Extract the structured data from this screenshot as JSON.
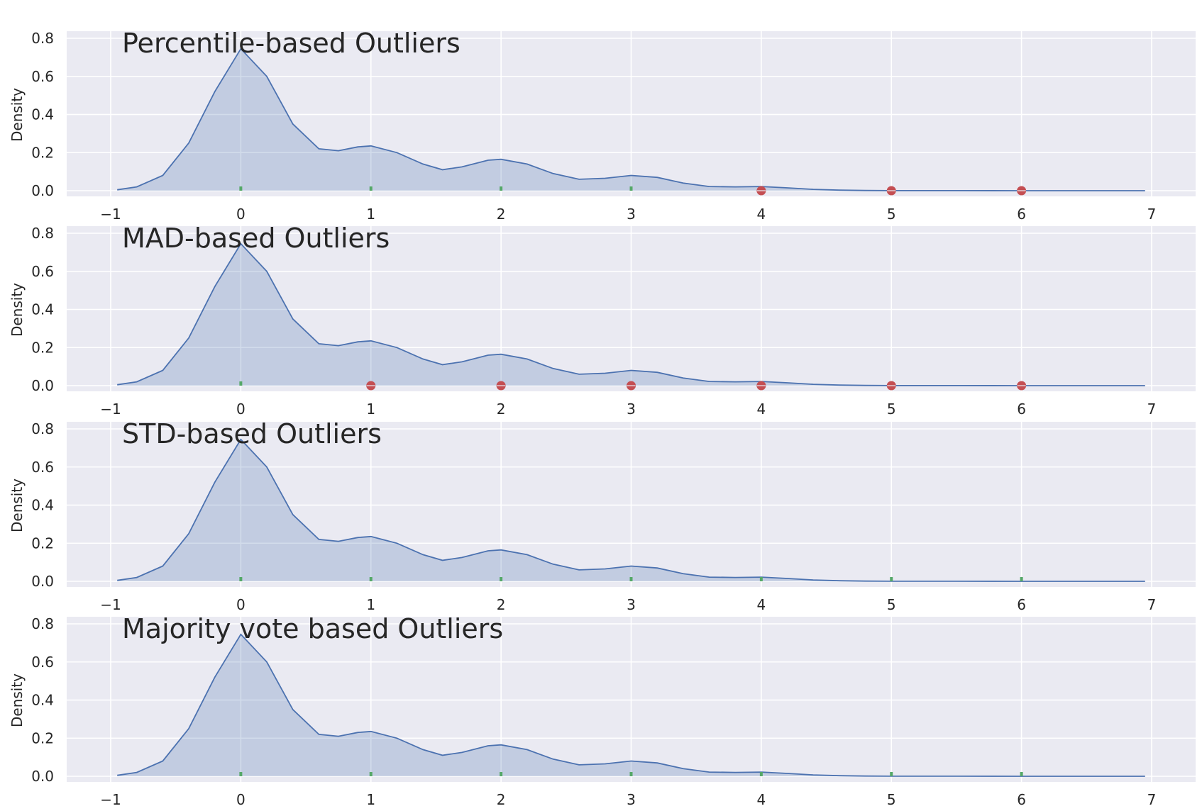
{
  "chart_data": [
    {
      "type": "area",
      "title": "Percentile-based Outliers",
      "xlabel": "",
      "ylabel": "Density",
      "xlim": [
        -1,
        7
      ],
      "ylim": [
        0,
        0.8
      ],
      "x_ticks": [
        "−1",
        "0",
        "1",
        "2",
        "3",
        "4",
        "5",
        "6",
        "7"
      ],
      "y_ticks": [
        "0.0",
        "0.2",
        "0.4",
        "0.6",
        "0.8"
      ],
      "grid": true,
      "density_curve": {
        "x": [
          -0.95,
          -0.8,
          -0.6,
          -0.4,
          -0.2,
          0,
          0.2,
          0.4,
          0.6,
          0.75,
          0.9,
          1.0,
          1.2,
          1.4,
          1.55,
          1.7,
          1.9,
          2.0,
          2.2,
          2.4,
          2.6,
          2.8,
          3.0,
          3.2,
          3.4,
          3.6,
          3.8,
          4.0,
          4.2,
          4.4,
          4.6,
          4.8,
          5.0,
          5.5,
          6.0,
          6.5,
          6.95
        ],
        "y": [
          0.005,
          0.02,
          0.08,
          0.25,
          0.52,
          0.745,
          0.6,
          0.35,
          0.22,
          0.21,
          0.23,
          0.235,
          0.2,
          0.14,
          0.11,
          0.125,
          0.16,
          0.165,
          0.14,
          0.09,
          0.06,
          0.065,
          0.08,
          0.07,
          0.04,
          0.022,
          0.02,
          0.022,
          0.015,
          0.007,
          0.003,
          0.001,
          0.0005,
          0.0002,
          0.0001,
          5e-05,
          0.0
        ]
      },
      "inliers": [
        0,
        1,
        2,
        3
      ],
      "outliers": [
        4,
        5,
        6
      ]
    },
    {
      "type": "area",
      "title": "MAD-based Outliers",
      "xlabel": "",
      "ylabel": "Density",
      "xlim": [
        -1,
        7
      ],
      "ylim": [
        0,
        0.8
      ],
      "x_ticks": [
        "−1",
        "0",
        "1",
        "2",
        "3",
        "4",
        "5",
        "6",
        "7"
      ],
      "y_ticks": [
        "0.0",
        "0.2",
        "0.4",
        "0.6",
        "0.8"
      ],
      "grid": true,
      "density_curve": {
        "x": [
          -0.95,
          -0.8,
          -0.6,
          -0.4,
          -0.2,
          0,
          0.2,
          0.4,
          0.6,
          0.75,
          0.9,
          1.0,
          1.2,
          1.4,
          1.55,
          1.7,
          1.9,
          2.0,
          2.2,
          2.4,
          2.6,
          2.8,
          3.0,
          3.2,
          3.4,
          3.6,
          3.8,
          4.0,
          4.2,
          4.4,
          4.6,
          4.8,
          5.0,
          5.5,
          6.0,
          6.5,
          6.95
        ],
        "y": [
          0.005,
          0.02,
          0.08,
          0.25,
          0.52,
          0.745,
          0.6,
          0.35,
          0.22,
          0.21,
          0.23,
          0.235,
          0.2,
          0.14,
          0.11,
          0.125,
          0.16,
          0.165,
          0.14,
          0.09,
          0.06,
          0.065,
          0.08,
          0.07,
          0.04,
          0.022,
          0.02,
          0.022,
          0.015,
          0.007,
          0.003,
          0.001,
          0.0005,
          0.0002,
          0.0001,
          5e-05,
          0.0
        ]
      },
      "inliers": [
        0
      ],
      "outliers": [
        1,
        2,
        3,
        4,
        5,
        6
      ]
    },
    {
      "type": "area",
      "title": "STD-based Outliers",
      "xlabel": "",
      "ylabel": "Density",
      "xlim": [
        -1,
        7
      ],
      "ylim": [
        0,
        0.8
      ],
      "x_ticks": [
        "−1",
        "0",
        "1",
        "2",
        "3",
        "4",
        "5",
        "6",
        "7"
      ],
      "y_ticks": [
        "0.0",
        "0.2",
        "0.4",
        "0.6",
        "0.8"
      ],
      "grid": true,
      "density_curve": {
        "x": [
          -0.95,
          -0.8,
          -0.6,
          -0.4,
          -0.2,
          0,
          0.2,
          0.4,
          0.6,
          0.75,
          0.9,
          1.0,
          1.2,
          1.4,
          1.55,
          1.7,
          1.9,
          2.0,
          2.2,
          2.4,
          2.6,
          2.8,
          3.0,
          3.2,
          3.4,
          3.6,
          3.8,
          4.0,
          4.2,
          4.4,
          4.6,
          4.8,
          5.0,
          5.5,
          6.0,
          6.5,
          6.95
        ],
        "y": [
          0.005,
          0.02,
          0.08,
          0.25,
          0.52,
          0.745,
          0.6,
          0.35,
          0.22,
          0.21,
          0.23,
          0.235,
          0.2,
          0.14,
          0.11,
          0.125,
          0.16,
          0.165,
          0.14,
          0.09,
          0.06,
          0.065,
          0.08,
          0.07,
          0.04,
          0.022,
          0.02,
          0.022,
          0.015,
          0.007,
          0.003,
          0.001,
          0.0005,
          0.0002,
          0.0001,
          5e-05,
          0.0
        ]
      },
      "inliers": [
        0,
        1,
        2,
        3,
        4,
        5,
        6
      ],
      "outliers": []
    },
    {
      "type": "area",
      "title": "Majority vote based Outliers",
      "xlabel": "",
      "ylabel": "Density",
      "xlim": [
        -1,
        7
      ],
      "ylim": [
        0,
        0.8
      ],
      "x_ticks": [
        "−1",
        "0",
        "1",
        "2",
        "3",
        "4",
        "5",
        "6",
        "7"
      ],
      "y_ticks": [
        "0.0",
        "0.2",
        "0.4",
        "0.6",
        "0.8"
      ],
      "grid": true,
      "density_curve": {
        "x": [
          -0.95,
          -0.8,
          -0.6,
          -0.4,
          -0.2,
          0,
          0.2,
          0.4,
          0.6,
          0.75,
          0.9,
          1.0,
          1.2,
          1.4,
          1.55,
          1.7,
          1.9,
          2.0,
          2.2,
          2.4,
          2.6,
          2.8,
          3.0,
          3.2,
          3.4,
          3.6,
          3.8,
          4.0,
          4.2,
          4.4,
          4.6,
          4.8,
          5.0,
          5.5,
          6.0,
          6.5,
          6.95
        ],
        "y": [
          0.005,
          0.02,
          0.08,
          0.25,
          0.52,
          0.745,
          0.6,
          0.35,
          0.22,
          0.21,
          0.23,
          0.235,
          0.2,
          0.14,
          0.11,
          0.125,
          0.16,
          0.165,
          0.14,
          0.09,
          0.06,
          0.065,
          0.08,
          0.07,
          0.04,
          0.022,
          0.02,
          0.022,
          0.015,
          0.007,
          0.003,
          0.001,
          0.0005,
          0.0002,
          0.0001,
          5e-05,
          0.0
        ]
      },
      "inliers": [
        0,
        1,
        2,
        3,
        4,
        5,
        6
      ],
      "outliers": []
    }
  ],
  "colors": {
    "panel_background": "#eaeaf2",
    "grid": "#ffffff",
    "curve_line": "#4c72b0",
    "curve_fill": "#4c72b0",
    "inlier_marker": "#55a868",
    "outlier_marker": "#c44e52",
    "text": "#262626"
  }
}
